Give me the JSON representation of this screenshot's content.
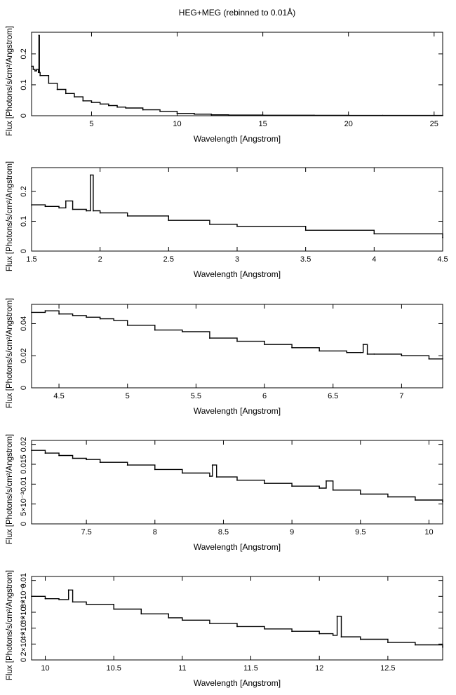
{
  "title": "HEG+MEG (rebinned to 0.01Å)",
  "chart_data": [
    {
      "type": "line",
      "xlabel": "Wavelength [Angstrom]",
      "ylabel": "Flux [Photons/s/cm²/Angstrom]",
      "xlim": [
        1.5,
        25.5
      ],
      "ylim": [
        0,
        0.27
      ],
      "xticks": [
        "5",
        "10",
        "15",
        "20",
        "25"
      ],
      "yticks": [
        "0",
        "0.1",
        "0.2"
      ],
      "series": [
        {
          "x": [
            1.5,
            1.6,
            1.7,
            1.8,
            1.9,
            1.93,
            1.96,
            2.0,
            2.5,
            3,
            3.5,
            4,
            4.5,
            5,
            5.5,
            6,
            6.5,
            7,
            8,
            9,
            10,
            11,
            12,
            13,
            15,
            18,
            20,
            22,
            25,
            25.5
          ],
          "y": [
            0.16,
            0.15,
            0.145,
            0.15,
            0.14,
            0.26,
            0.14,
            0.13,
            0.105,
            0.085,
            0.072,
            0.061,
            0.048,
            0.043,
            0.038,
            0.033,
            0.028,
            0.025,
            0.019,
            0.014,
            0.0075,
            0.005,
            0.003,
            0.002,
            0.0015,
            0.0012,
            0.001,
            0.001,
            0.0008,
            0.0008
          ]
        }
      ]
    },
    {
      "type": "line",
      "xlabel": "Wavelength [Angstrom]",
      "ylabel": "Flux [Photons/s/cm²/Angstrom]",
      "xlim": [
        1.5,
        4.5
      ],
      "ylim": [
        0,
        0.28
      ],
      "xticks": [
        "1.5",
        "2",
        "2.5",
        "3",
        "3.5",
        "4",
        "4.5"
      ],
      "yticks": [
        "0",
        "0.1",
        "0.2"
      ],
      "series": [
        {
          "x": [
            1.5,
            1.6,
            1.7,
            1.75,
            1.8,
            1.9,
            1.93,
            1.95,
            2.0,
            2.2,
            2.5,
            2.8,
            3.0,
            3.5,
            4.0,
            4.5
          ],
          "y": [
            0.155,
            0.15,
            0.145,
            0.168,
            0.14,
            0.135,
            0.255,
            0.135,
            0.128,
            0.118,
            0.103,
            0.09,
            0.083,
            0.07,
            0.058,
            0.045
          ]
        }
      ]
    },
    {
      "type": "line",
      "xlabel": "Wavelength [Angstrom]",
      "ylabel": "Flux [Photons/s/cm²/Angstrom]",
      "xlim": [
        4.3,
        7.3
      ],
      "ylim": [
        0,
        0.052
      ],
      "xticks": [
        "4.5",
        "5",
        "5.5",
        "6",
        "6.5",
        "7"
      ],
      "yticks": [
        "0",
        "0.02",
        "0.04"
      ],
      "series": [
        {
          "x": [
            4.3,
            4.4,
            4.5,
            4.6,
            4.7,
            4.8,
            4.9,
            5.0,
            5.2,
            5.4,
            5.6,
            5.8,
            6.0,
            6.2,
            6.4,
            6.6,
            6.7,
            6.72,
            6.75,
            6.8,
            7.0,
            7.2,
            7.3
          ],
          "y": [
            0.047,
            0.048,
            0.046,
            0.045,
            0.044,
            0.043,
            0.042,
            0.039,
            0.036,
            0.035,
            0.031,
            0.029,
            0.027,
            0.025,
            0.023,
            0.022,
            0.022,
            0.027,
            0.021,
            0.021,
            0.02,
            0.018,
            0.018
          ]
        }
      ]
    },
    {
      "type": "line",
      "xlabel": "Wavelength [Angstrom]",
      "ylabel": "Flux [Photons/s/cm²/Angstrom]",
      "xlim": [
        7.1,
        10.1
      ],
      "ylim": [
        0,
        0.021
      ],
      "xticks": [
        "7.5",
        "8",
        "8.5",
        "9",
        "9.5",
        "10"
      ],
      "yticks": [
        "0",
        "5×10⁻³",
        "0.01",
        "0.015",
        "0.02"
      ],
      "series": [
        {
          "x": [
            7.1,
            7.2,
            7.3,
            7.4,
            7.5,
            7.6,
            7.8,
            8.0,
            8.2,
            8.4,
            8.42,
            8.45,
            8.6,
            8.8,
            9.0,
            9.2,
            9.25,
            9.3,
            9.5,
            9.7,
            9.9,
            10.1
          ],
          "y": [
            0.0185,
            0.0178,
            0.0172,
            0.0165,
            0.0162,
            0.0155,
            0.0148,
            0.0137,
            0.0128,
            0.012,
            0.0148,
            0.0118,
            0.011,
            0.0102,
            0.0095,
            0.009,
            0.0108,
            0.0085,
            0.0075,
            0.0068,
            0.006,
            0.0055
          ]
        }
      ]
    },
    {
      "type": "line",
      "xlabel": "Wavelength [Angstrom]",
      "ylabel": "Flux [Photons/s/cm²/Angstrom]",
      "xlim": [
        9.9,
        12.9
      ],
      "ylim": [
        0,
        0.0105
      ],
      "xticks": [
        "10",
        "10.5",
        "11",
        "11.5",
        "12",
        "12.5"
      ],
      "yticks": [
        "0",
        "2×10⁻³",
        "4×10⁻³",
        "6×10⁻³",
        "8×10⁻³",
        "0.01"
      ],
      "series": [
        {
          "x": [
            9.9,
            10.0,
            10.1,
            10.17,
            10.2,
            10.3,
            10.5,
            10.7,
            10.9,
            11.0,
            11.2,
            11.4,
            11.6,
            11.8,
            12.0,
            12.1,
            12.13,
            12.16,
            12.3,
            12.5,
            12.7,
            12.9
          ],
          "y": [
            0.008,
            0.0077,
            0.0076,
            0.0088,
            0.0073,
            0.007,
            0.0064,
            0.0058,
            0.0053,
            0.005,
            0.0046,
            0.0042,
            0.0039,
            0.0036,
            0.0033,
            0.0031,
            0.0055,
            0.0029,
            0.0026,
            0.0022,
            0.0019,
            0.0016
          ]
        }
      ]
    }
  ]
}
